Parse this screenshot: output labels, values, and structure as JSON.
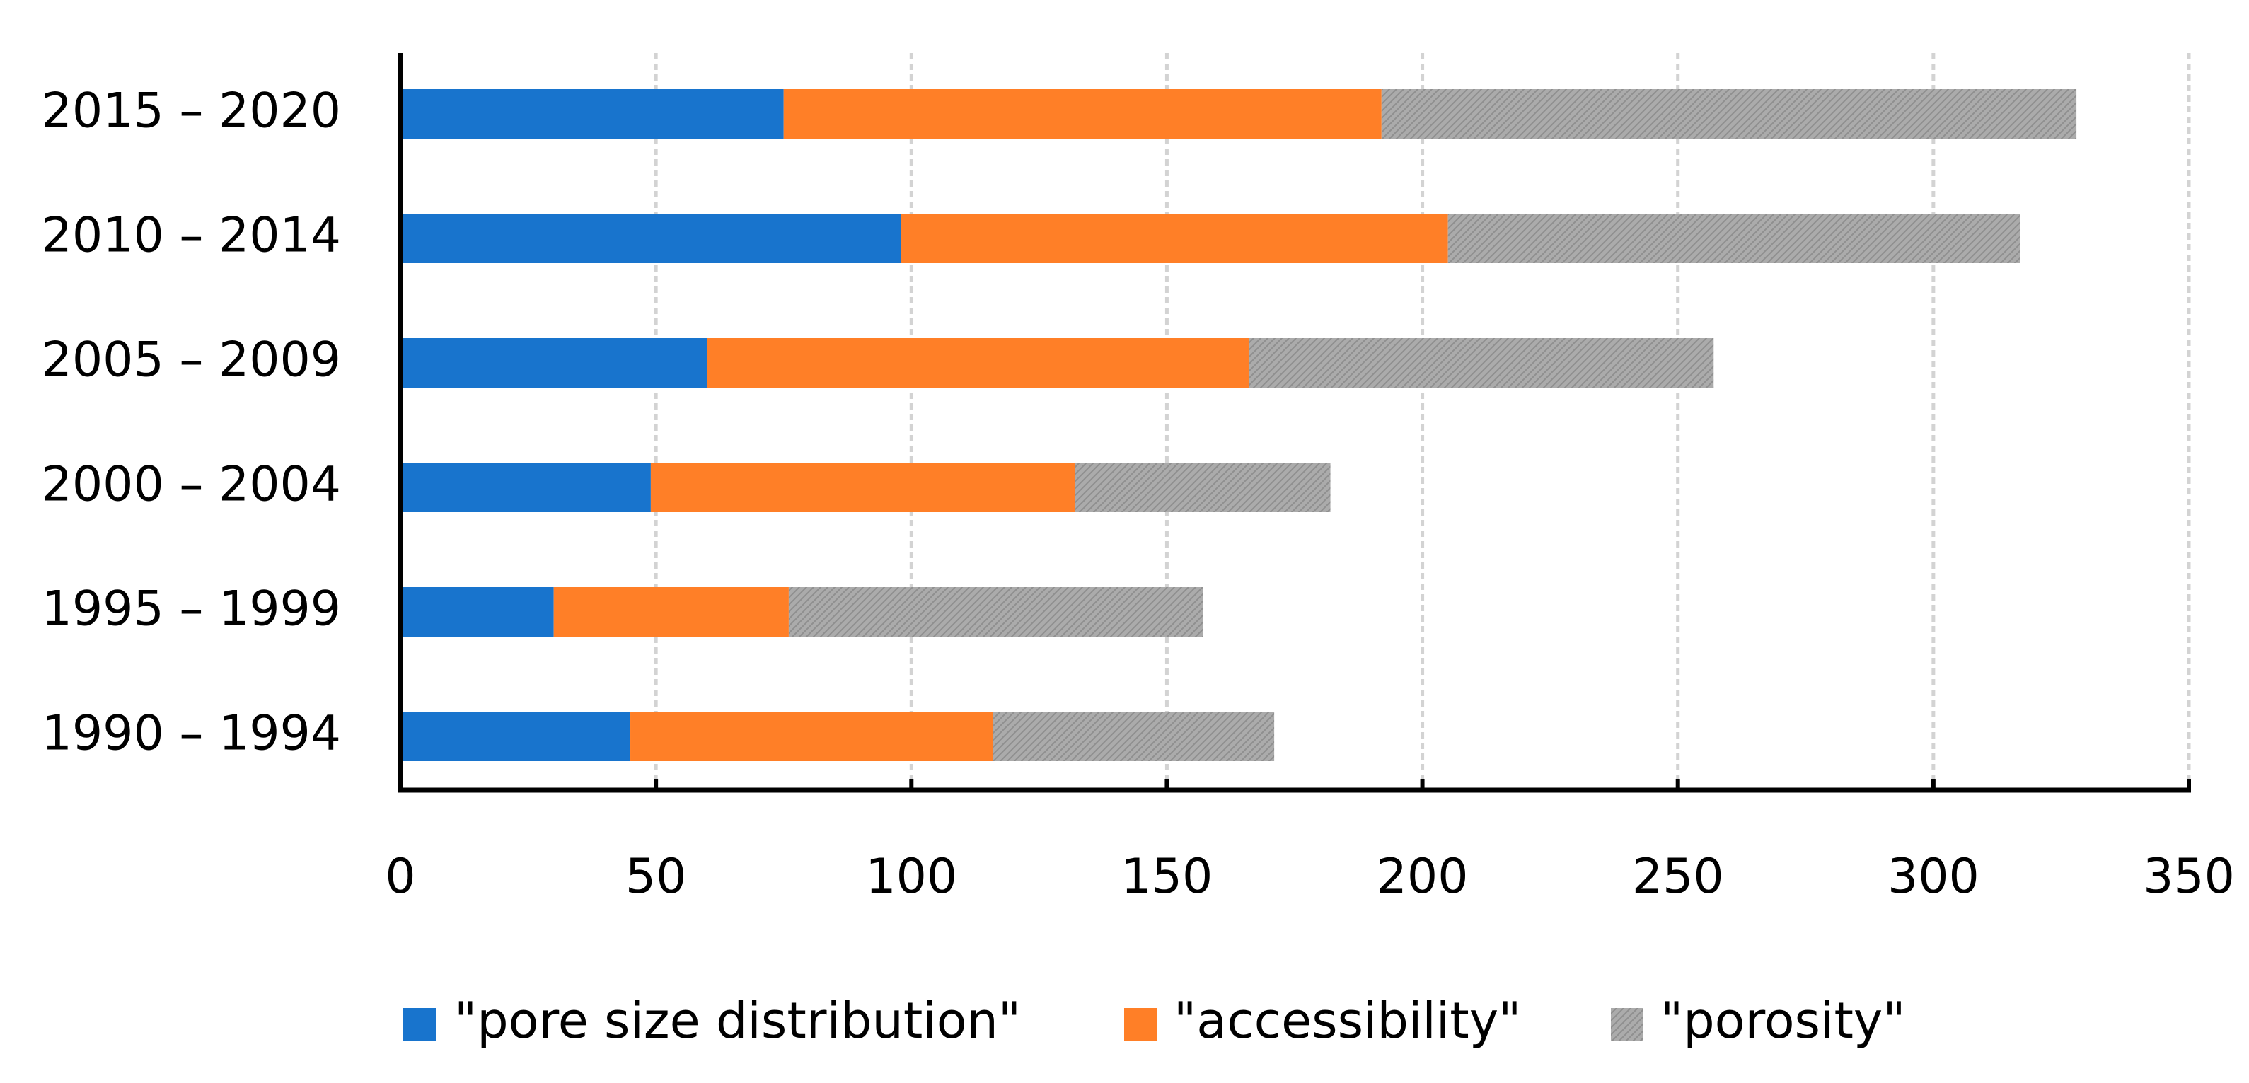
{
  "chart_data": {
    "type": "bar",
    "orientation": "horizontal",
    "stacked": true,
    "title": "",
    "xlabel": "",
    "ylabel": "",
    "xlim": [
      0,
      350
    ],
    "xticks": [
      0,
      50,
      100,
      150,
      200,
      250,
      300,
      350
    ],
    "grid": true,
    "legend_position": "bottom",
    "categories": [
      "2015 – 2020",
      "2010 – 2014",
      "2005 – 2009",
      "2000 – 2004",
      "1995 – 1999",
      "1990 – 1994"
    ],
    "series": [
      {
        "name": "\"pore size distribution\"",
        "color": "#1874CD",
        "values": [
          75,
          98,
          60,
          49,
          30,
          45
        ]
      },
      {
        "name": "\"accessibility\"",
        "color": "#FF7F27",
        "values": [
          117,
          107,
          106,
          83,
          46,
          71
        ]
      },
      {
        "name": "\"porosity\"",
        "color": "#A9A9A9",
        "values": [
          136,
          112,
          91,
          50,
          81,
          55
        ]
      }
    ]
  }
}
